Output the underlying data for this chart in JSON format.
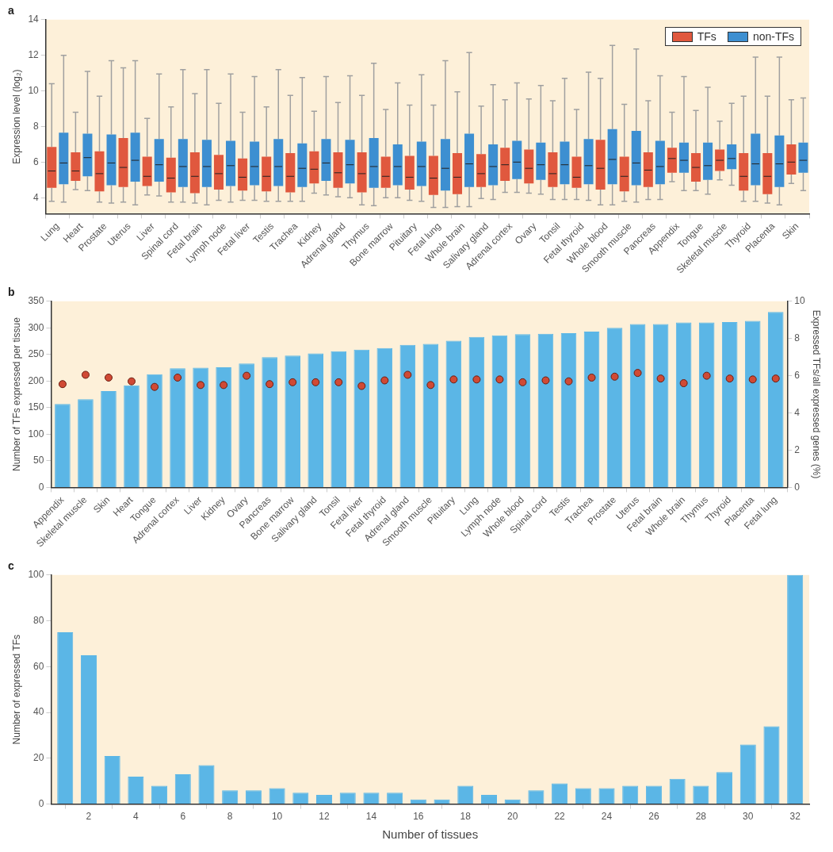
{
  "chart_data": [
    {
      "type": "box",
      "title": "a",
      "ylabel": "Expression level (log₂)",
      "legend": "top right",
      "ylim": [
        3.1,
        14
      ],
      "yticks": [
        4,
        6,
        8,
        10,
        12,
        14
      ],
      "categories": [
        "Lung",
        "Heart",
        "Prostate",
        "Uterus",
        "Liver",
        "Spinal cord",
        "Fetal brain",
        "Lymph node",
        "Fetal liver",
        "Testis",
        "Trachea",
        "Kidney",
        "Adrenal gland",
        "Thymus",
        "Bone marrow",
        "Pituitary",
        "Fetal lung",
        "Whole brain",
        "Salivary gland",
        "Adrenal cortex",
        "Ovary",
        "Tonsil",
        "Fetal thyroid",
        "Whole blood",
        "Smooth muscle",
        "Pancreas",
        "Appendix",
        "Tongue",
        "Skeletal muscle",
        "Thyroid",
        "Placenta",
        "Skin"
      ],
      "series": [
        {
          "name": "TFs",
          "color": "#e0583e",
          "boxes": [
            {
              "low": 3.8,
              "q1": 4.55,
              "median": 5.5,
              "q3": 6.85,
              "high": 10.4
            },
            {
              "low": 4.45,
              "q1": 4.95,
              "median": 5.5,
              "q3": 6.55,
              "high": 8.8
            },
            {
              "low": 3.75,
              "q1": 4.35,
              "median": 5.35,
              "q3": 6.6,
              "high": 9.7
            },
            {
              "low": 3.75,
              "q1": 4.6,
              "median": 5.7,
              "q3": 7.35,
              "high": 11.3
            },
            {
              "low": 4.15,
              "q1": 4.65,
              "median": 5.2,
              "q3": 6.3,
              "high": 8.45
            },
            {
              "low": 3.75,
              "q1": 4.3,
              "median": 5.1,
              "q3": 6.25,
              "high": 9.1
            },
            {
              "low": 3.7,
              "q1": 4.25,
              "median": 5.2,
              "q3": 6.55,
              "high": 9.85
            },
            {
              "low": 3.85,
              "q1": 4.45,
              "median": 5.35,
              "q3": 6.4,
              "high": 9.3
            },
            {
              "low": 3.85,
              "q1": 4.4,
              "median": 5.15,
              "q3": 6.2,
              "high": 8.8
            },
            {
              "low": 3.8,
              "q1": 4.35,
              "median": 5.2,
              "q3": 6.3,
              "high": 9.1
            },
            {
              "low": 3.8,
              "q1": 4.3,
              "median": 5.2,
              "q3": 6.5,
              "high": 9.75
            },
            {
              "low": 4.25,
              "q1": 4.8,
              "median": 5.6,
              "q3": 6.6,
              "high": 8.85
            },
            {
              "low": 4.05,
              "q1": 4.55,
              "median": 5.4,
              "q3": 6.55,
              "high": 9.35
            },
            {
              "low": 3.6,
              "q1": 4.3,
              "median": 5.35,
              "q3": 6.55,
              "high": 9.75
            },
            {
              "low": 4.0,
              "q1": 4.55,
              "median": 5.2,
              "q3": 6.3,
              "high": 8.95
            },
            {
              "low": 3.85,
              "q1": 4.45,
              "median": 5.15,
              "q3": 6.35,
              "high": 9.2
            },
            {
              "low": 3.45,
              "q1": 4.15,
              "median": 5.1,
              "q3": 6.35,
              "high": 9.2
            },
            {
              "low": 3.5,
              "q1": 4.2,
              "median": 5.15,
              "q3": 6.5,
              "high": 9.95
            },
            {
              "low": 3.95,
              "q1": 4.6,
              "median": 5.35,
              "q3": 6.45,
              "high": 9.15
            },
            {
              "low": 4.3,
              "q1": 4.95,
              "median": 5.85,
              "q3": 6.8,
              "high": 9.5
            },
            {
              "low": 4.25,
              "q1": 4.8,
              "median": 5.65,
              "q3": 6.7,
              "high": 9.55
            },
            {
              "low": 3.9,
              "q1": 4.6,
              "median": 5.35,
              "q3": 6.55,
              "high": 9.45
            },
            {
              "low": 3.9,
              "q1": 4.55,
              "median": 5.15,
              "q3": 6.3,
              "high": 8.95
            },
            {
              "low": 3.6,
              "q1": 4.45,
              "median": 5.65,
              "q3": 7.25,
              "high": 10.7
            },
            {
              "low": 3.8,
              "q1": 4.35,
              "median": 5.2,
              "q3": 6.3,
              "high": 9.25
            },
            {
              "low": 3.9,
              "q1": 4.6,
              "median": 5.55,
              "q3": 6.55,
              "high": 9.45
            },
            {
              "low": 4.9,
              "q1": 5.4,
              "median": 6.2,
              "q3": 6.8,
              "high": 8.8
            },
            {
              "low": 4.4,
              "q1": 4.9,
              "median": 5.7,
              "q3": 6.5,
              "high": 8.9
            },
            {
              "low": 5.0,
              "q1": 5.5,
              "median": 6.1,
              "q3": 6.7,
              "high": 8.3
            },
            {
              "low": 3.8,
              "q1": 4.4,
              "median": 5.2,
              "q3": 6.5,
              "high": 9.7
            },
            {
              "low": 3.7,
              "q1": 4.2,
              "median": 5.2,
              "q3": 6.5,
              "high": 9.7
            },
            {
              "low": 4.8,
              "q1": 5.3,
              "median": 6.0,
              "q3": 7.0,
              "high": 9.5
            }
          ]
        },
        {
          "name": "non-TFs",
          "color": "#3d8fd1",
          "boxes": [
            {
              "low": 3.75,
              "q1": 4.75,
              "median": 5.95,
              "q3": 7.65,
              "high": 12.0
            },
            {
              "low": 4.4,
              "q1": 5.2,
              "median": 6.25,
              "q3": 7.6,
              "high": 11.1
            },
            {
              "low": 3.7,
              "q1": 4.7,
              "median": 5.95,
              "q3": 7.55,
              "high": 11.7
            },
            {
              "low": 3.6,
              "q1": 4.9,
              "median": 6.1,
              "q3": 7.65,
              "high": 11.7
            },
            {
              "low": 4.1,
              "q1": 4.9,
              "median": 5.85,
              "q3": 7.3,
              "high": 10.95
            },
            {
              "low": 3.75,
              "q1": 4.6,
              "median": 5.75,
              "q3": 7.3,
              "high": 11.2
            },
            {
              "low": 3.6,
              "q1": 4.6,
              "median": 5.75,
              "q3": 7.25,
              "high": 11.2
            },
            {
              "low": 3.75,
              "q1": 4.65,
              "median": 5.8,
              "q3": 7.2,
              "high": 10.95
            },
            {
              "low": 3.85,
              "q1": 4.7,
              "median": 5.75,
              "q3": 7.15,
              "high": 10.8
            },
            {
              "low": 3.8,
              "q1": 4.65,
              "median": 5.75,
              "q3": 7.3,
              "high": 11.2
            },
            {
              "low": 3.8,
              "q1": 4.6,
              "median": 5.65,
              "q3": 7.05,
              "high": 10.75
            },
            {
              "low": 4.15,
              "q1": 4.95,
              "median": 5.95,
              "q3": 7.3,
              "high": 10.8
            },
            {
              "low": 4.0,
              "q1": 4.8,
              "median": 5.85,
              "q3": 7.25,
              "high": 10.85
            },
            {
              "low": 3.55,
              "q1": 4.55,
              "median": 5.75,
              "q3": 7.35,
              "high": 11.55
            },
            {
              "low": 4.0,
              "q1": 4.7,
              "median": 5.75,
              "q3": 7.0,
              "high": 10.45
            },
            {
              "low": 3.8,
              "q1": 4.65,
              "median": 5.75,
              "q3": 7.15,
              "high": 10.9
            },
            {
              "low": 3.45,
              "q1": 4.4,
              "median": 5.65,
              "q3": 7.3,
              "high": 11.7
            },
            {
              "low": 3.5,
              "q1": 4.6,
              "median": 5.9,
              "q3": 7.6,
              "high": 12.15
            },
            {
              "low": 3.9,
              "q1": 4.7,
              "median": 5.75,
              "q3": 7.0,
              "high": 10.35
            },
            {
              "low": 4.3,
              "q1": 5.05,
              "median": 6.0,
              "q3": 7.2,
              "high": 10.45
            },
            {
              "low": 4.2,
              "q1": 5.0,
              "median": 5.85,
              "q3": 7.1,
              "high": 10.3
            },
            {
              "low": 3.9,
              "q1": 4.75,
              "median": 5.85,
              "q3": 7.15,
              "high": 10.7
            },
            {
              "low": 3.85,
              "q1": 4.75,
              "median": 5.8,
              "q3": 7.3,
              "high": 11.05
            },
            {
              "low": 3.6,
              "q1": 4.75,
              "median": 6.15,
              "q3": 7.85,
              "high": 12.55
            },
            {
              "low": 3.75,
              "q1": 4.7,
              "median": 5.95,
              "q3": 7.75,
              "high": 12.35
            },
            {
              "low": 3.9,
              "q1": 4.75,
              "median": 5.75,
              "q3": 7.2,
              "high": 10.85
            },
            {
              "low": 4.4,
              "q1": 5.4,
              "median": 6.1,
              "q3": 7.1,
              "high": 10.8
            },
            {
              "low": 4.2,
              "q1": 5.0,
              "median": 5.8,
              "q3": 7.1,
              "high": 10.2
            },
            {
              "low": 4.7,
              "q1": 5.6,
              "median": 6.2,
              "q3": 7.0,
              "high": 9.3
            },
            {
              "low": 3.8,
              "q1": 4.7,
              "median": 5.9,
              "q3": 7.6,
              "high": 11.9
            },
            {
              "low": 3.6,
              "q1": 4.6,
              "median": 5.9,
              "q3": 7.5,
              "high": 11.9
            },
            {
              "low": 4.4,
              "q1": 5.4,
              "median": 6.1,
              "q3": 7.1,
              "high": 9.6
            }
          ]
        }
      ]
    },
    {
      "type": "bar",
      "title": "b",
      "ylabel": "Number of TFs expressed per tissue",
      "y2label": "Expressed TFs/all expressed genes (%)",
      "ylim": [
        0,
        350
      ],
      "yticks": [
        0,
        50,
        100,
        150,
        200,
        250,
        300,
        350
      ],
      "y2lim": [
        0,
        10
      ],
      "y2ticks": [
        0,
        2,
        4,
        6,
        8,
        10
      ],
      "categories": [
        "Appendix",
        "Skeletal muscle",
        "Skin",
        "Heart",
        "Tongue",
        "Adrenal cortex",
        "Liver",
        "Kidney",
        "Ovary",
        "Pancreas",
        "Bone marrow",
        "Salivary gland",
        "Tonsil",
        "Fetal liver",
        "Fetal thyroid",
        "Adrenal gland",
        "Smooth muscle",
        "Pituitary",
        "Lung",
        "Lymph node",
        "Whole blood",
        "Spinal cord",
        "Testis",
        "Trachea",
        "Prostate",
        "Uterus",
        "Fetal brain",
        "Whole brain",
        "Thymus",
        "Thyroid",
        "Placenta",
        "Fetal lung"
      ],
      "series": [
        {
          "type": "bar",
          "color": "#5bb6e6",
          "values": [
            157,
            166,
            181,
            192,
            213,
            224,
            225,
            226,
            233,
            245,
            248,
            252,
            256,
            259,
            262,
            268,
            270,
            276,
            283,
            286,
            288,
            289,
            290,
            293,
            300,
            307,
            307,
            310,
            310,
            311,
            313,
            330
          ]
        },
        {
          "type": "scatter",
          "axis": "y2",
          "marker": "circle",
          "color": "#d04a35",
          "values": [
            5.55,
            6.05,
            5.9,
            5.7,
            5.4,
            5.9,
            5.5,
            5.5,
            6.0,
            5.55,
            5.65,
            5.65,
            5.65,
            5.45,
            5.75,
            6.05,
            5.5,
            5.8,
            5.8,
            5.8,
            5.65,
            5.75,
            5.7,
            5.9,
            5.95,
            6.15,
            5.85,
            5.6,
            6.0,
            5.85,
            5.8,
            5.85
          ]
        }
      ]
    },
    {
      "type": "bar",
      "title": "c",
      "xlabel": "Number of tissues",
      "ylabel": "Number of expressed TFs",
      "ylim": [
        0,
        100
      ],
      "yticks": [
        0,
        20,
        40,
        60,
        80,
        100
      ],
      "color": "#5bb6e6",
      "x": [
        1,
        2,
        3,
        4,
        5,
        6,
        7,
        8,
        9,
        10,
        11,
        12,
        13,
        14,
        15,
        16,
        17,
        18,
        19,
        20,
        21,
        22,
        23,
        24,
        25,
        26,
        27,
        28,
        29,
        30,
        31,
        32
      ],
      "xlim": [
        0.4,
        32.6
      ],
      "xticks": [
        2,
        4,
        6,
        8,
        10,
        12,
        14,
        16,
        18,
        20,
        22,
        24,
        26,
        28,
        30,
        32
      ],
      "values": [
        75,
        65,
        21,
        12,
        8,
        13,
        17,
        6,
        6,
        7,
        5,
        4,
        5,
        5,
        5,
        2,
        2,
        8,
        4,
        2,
        6,
        9,
        7,
        7,
        8,
        8,
        11,
        8,
        14,
        26,
        34,
        100
      ]
    }
  ]
}
